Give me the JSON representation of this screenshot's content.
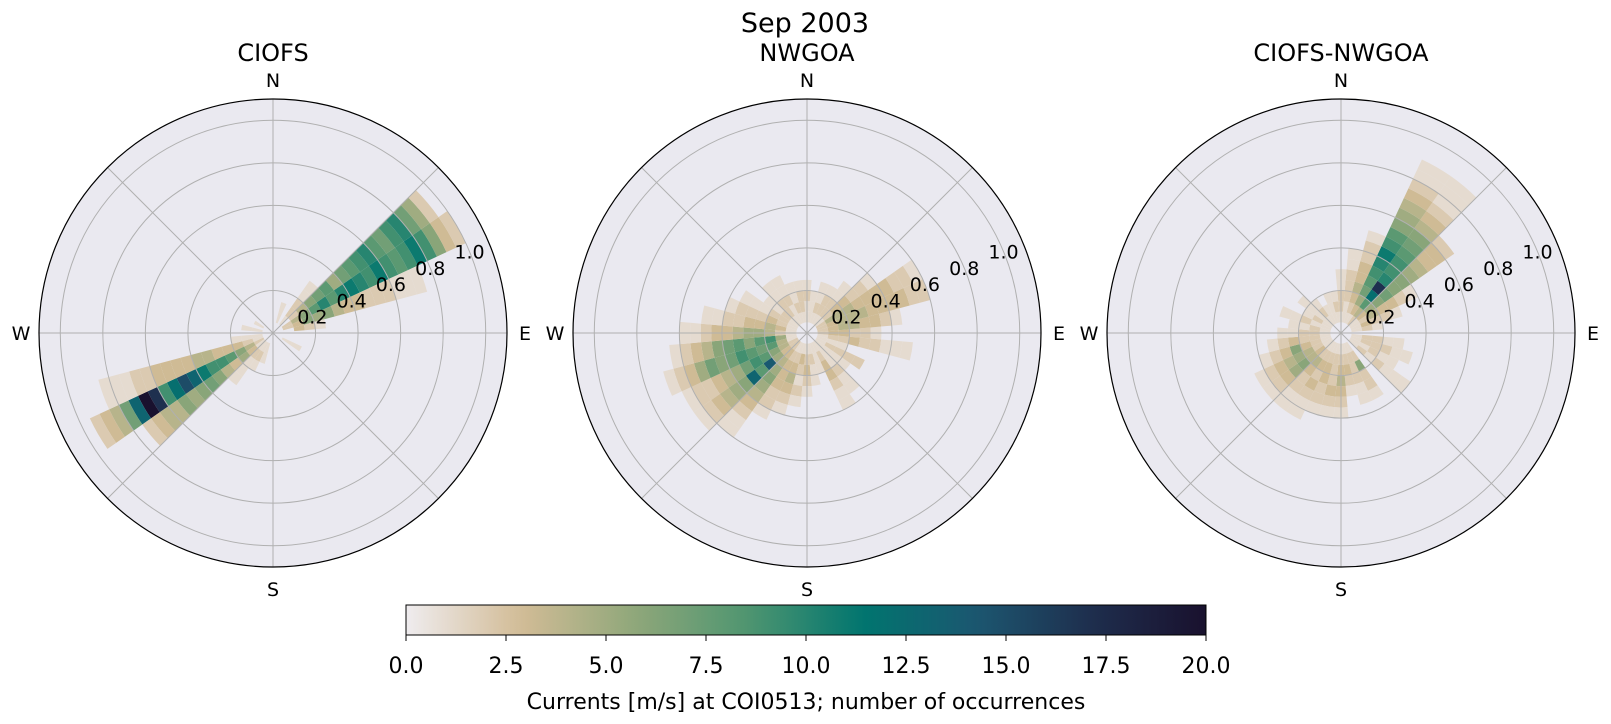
{
  "figure": {
    "suptitle": "Sep 2003"
  },
  "colorbar": {
    "label": "Currents [m/s] at COI0513; number of occurrences",
    "min": 0,
    "max": 20,
    "ticks": [
      "0.0",
      "2.5",
      "5.0",
      "7.5",
      "10.0",
      "12.5",
      "15.0",
      "17.5",
      "20.0"
    ],
    "colormap": [
      "#efecef",
      "#d2bc96",
      "#8fa77a",
      "#4e9570",
      "#00756f",
      "#1c5670",
      "#1e2e4d",
      "#19112e"
    ]
  },
  "chart_data": [
    {
      "type": "heatmap",
      "subtype": "polar-rose-2d-histogram",
      "title": "CIOFS",
      "compass_labels": [
        "N",
        "E",
        "S",
        "W"
      ],
      "radial_ticks": [
        "0.2",
        "0.4",
        "0.6",
        "0.8",
        "1.0"
      ],
      "rmax": 1.1,
      "dir_bin_deg": 10,
      "speed_bin": 0.05,
      "grid": true,
      "bins": [
        {
          "dir": 60,
          "counts": [
            0,
            2,
            4,
            6,
            8,
            10,
            8,
            10,
            11,
            10,
            9,
            11,
            9,
            8,
            9,
            11,
            9,
            6,
            3,
            2
          ]
        },
        {
          "dir": 50,
          "counts": [
            0,
            0,
            2,
            4,
            6,
            7,
            8,
            5,
            7,
            8,
            9,
            10,
            8,
            7,
            9,
            10,
            7,
            5,
            2
          ]
        },
        {
          "dir": 70,
          "counts": [
            0,
            2,
            3,
            6,
            5,
            6,
            4,
            3,
            3,
            2,
            2,
            2,
            1,
            1,
            1
          ]
        },
        {
          "dir": 40,
          "counts": [
            0,
            1,
            2,
            2,
            1,
            1
          ]
        },
        {
          "dir": 80,
          "counts": [
            0,
            0,
            3,
            2,
            1
          ]
        },
        {
          "dir": 240,
          "counts": [
            0,
            2,
            4,
            6,
            8,
            9,
            9,
            11,
            13,
            15,
            12,
            9,
            17,
            20,
            13,
            7,
            4,
            3,
            2
          ]
        },
        {
          "dir": 230,
          "counts": [
            0,
            1,
            3,
            5,
            3,
            4,
            6,
            7,
            6,
            5,
            6,
            4,
            4,
            3,
            2
          ]
        },
        {
          "dir": 250,
          "counts": [
            0,
            1,
            2,
            3,
            3,
            3,
            4,
            4,
            3,
            3,
            3,
            3,
            2,
            2,
            1,
            1,
            1
          ]
        },
        {
          "dir": 220,
          "counts": [
            0,
            1,
            2,
            1,
            1,
            1
          ]
        },
        {
          "dir": 210,
          "counts": [
            0,
            1,
            2,
            1
          ]
        },
        {
          "dir": 200,
          "counts": [
            0,
            1,
            1
          ]
        },
        {
          "dir": 260,
          "counts": [
            0,
            1,
            1,
            1
          ]
        },
        {
          "dir": 20,
          "counts": [
            0,
            1,
            1
          ]
        },
        {
          "dir": 280,
          "counts": [
            0,
            1,
            1
          ]
        },
        {
          "dir": 300,
          "counts": [
            0,
            1
          ]
        },
        {
          "dir": 120,
          "counts": [
            0,
            1,
            1
          ]
        }
      ]
    },
    {
      "type": "heatmap",
      "subtype": "polar-rose-2d-histogram",
      "title": "NWGOA",
      "compass_labels": [
        "N",
        "E",
        "S",
        "W"
      ],
      "radial_ticks": [
        "0.2",
        "0.4",
        "0.6",
        "0.8",
        "1.0"
      ],
      "rmax": 1.1,
      "dir_bin_deg": 10,
      "speed_bin": 0.05,
      "grid": true,
      "bins": [
        {
          "dir": 240,
          "counts": [
            0,
            2,
            4,
            6,
            8,
            9,
            7,
            5,
            4,
            3,
            2,
            2,
            1
          ]
        },
        {
          "dir": 250,
          "counts": [
            0,
            1,
            4,
            8,
            7,
            8,
            9,
            7,
            6,
            7,
            5,
            3,
            2,
            1
          ]
        },
        {
          "dir": 260,
          "counts": [
            0,
            1,
            5,
            9,
            8,
            6,
            8,
            7,
            6,
            4,
            3,
            2,
            1
          ]
        },
        {
          "dir": 230,
          "counts": [
            0,
            2,
            3,
            5,
            14,
            8,
            13,
            6,
            5,
            4,
            3,
            2,
            1
          ]
        },
        {
          "dir": 220,
          "counts": [
            0,
            2,
            3,
            4,
            5,
            6,
            5,
            4,
            3,
            2,
            1,
            1
          ]
        },
        {
          "dir": 270,
          "counts": [
            0,
            1,
            2,
            4,
            5,
            5,
            4,
            3,
            3,
            2,
            1,
            1
          ]
        },
        {
          "dir": 280,
          "counts": [
            0,
            1,
            3,
            4,
            3,
            3,
            2,
            2,
            1,
            1
          ]
        },
        {
          "dir": 290,
          "counts": [
            0,
            1,
            2,
            3,
            2,
            2,
            2,
            1
          ]
        },
        {
          "dir": 300,
          "counts": [
            0,
            1,
            2,
            2,
            1,
            1,
            1
          ]
        },
        {
          "dir": 210,
          "counts": [
            0,
            1,
            2,
            3,
            3,
            3,
            2,
            2,
            1
          ]
        },
        {
          "dir": 200,
          "counts": [
            0,
            1,
            2,
            3,
            4,
            3,
            2,
            1
          ]
        },
        {
          "dir": 190,
          "counts": [
            0,
            1,
            3,
            2,
            1,
            2,
            1
          ]
        },
        {
          "dir": 180,
          "counts": [
            0,
            1,
            2,
            3,
            2,
            1
          ]
        },
        {
          "dir": 170,
          "counts": [
            0,
            1,
            2,
            1,
            1
          ]
        },
        {
          "dir": 150,
          "counts": [
            0,
            1,
            2,
            3,
            3,
            2,
            1,
            1
          ]
        },
        {
          "dir": 140,
          "counts": [
            0,
            1,
            1,
            1,
            2,
            1,
            1
          ]
        },
        {
          "dir": 130,
          "counts": [
            0,
            1,
            1,
            1,
            1
          ]
        },
        {
          "dir": 120,
          "counts": [
            0,
            1,
            2,
            2,
            2,
            2
          ]
        },
        {
          "dir": 100,
          "counts": [
            0,
            1,
            2,
            2,
            3,
            2,
            2,
            1,
            1,
            1
          ]
        },
        {
          "dir": 90,
          "counts": [
            0,
            2,
            3,
            3,
            2,
            2,
            1
          ]
        },
        {
          "dir": 80,
          "counts": [
            0,
            2,
            3,
            4,
            4,
            3,
            3,
            2,
            1
          ]
        },
        {
          "dir": 70,
          "counts": [
            0,
            2,
            3,
            4,
            4,
            4,
            3,
            3,
            3,
            3,
            2,
            2
          ]
        },
        {
          "dir": 60,
          "counts": [
            0,
            2,
            4,
            4,
            4,
            3,
            3,
            3,
            3,
            2,
            2,
            1
          ]
        },
        {
          "dir": 50,
          "counts": [
            0,
            1,
            2,
            3,
            3,
            2,
            2,
            1
          ]
        },
        {
          "dir": 40,
          "counts": [
            0,
            1,
            2,
            2,
            1,
            1
          ]
        },
        {
          "dir": 30,
          "counts": [
            0,
            1,
            2,
            2,
            1
          ]
        },
        {
          "dir": 20,
          "counts": [
            0,
            1,
            2,
            1,
            1
          ]
        },
        {
          "dir": 10,
          "counts": [
            0,
            1,
            1,
            1
          ]
        },
        {
          "dir": 0,
          "counts": [
            0,
            1,
            1,
            2,
            1
          ]
        },
        {
          "dir": 350,
          "counts": [
            0,
            1,
            2,
            2,
            1
          ]
        },
        {
          "dir": 340,
          "counts": [
            0,
            1,
            2,
            1,
            1
          ]
        },
        {
          "dir": 330,
          "counts": [
            0,
            1,
            1,
            2,
            1,
            1
          ]
        },
        {
          "dir": 320,
          "counts": [
            0,
            1,
            2,
            2,
            1,
            1
          ]
        },
        {
          "dir": 310,
          "counts": [
            0,
            1,
            2,
            1,
            1
          ]
        },
        {
          "dir": 160,
          "counts": [
            0,
            1,
            1,
            1
          ]
        },
        {
          "dir": 110,
          "counts": [
            0,
            1,
            1,
            1
          ]
        }
      ]
    },
    {
      "type": "heatmap",
      "subtype": "polar-rose-2d-histogram",
      "title": "CIOFS-NWGOA",
      "compass_labels": [
        "N",
        "E",
        "S",
        "W"
      ],
      "radial_ticks": [
        "0.2",
        "0.4",
        "0.6",
        "0.8",
        "1.0"
      ],
      "rmax": 1.1,
      "dir_bin_deg": 10,
      "speed_bin": 0.05,
      "grid": true,
      "bins": [
        {
          "dir": 40,
          "counts": [
            0,
            2,
            4,
            8,
            12,
            17,
            10,
            9,
            9,
            8,
            7,
            6,
            4,
            3,
            2,
            1,
            1,
            1
          ]
        },
        {
          "dir": 30,
          "counts": [
            0,
            1,
            3,
            5,
            7,
            8,
            9,
            10,
            11,
            9,
            8,
            6,
            5,
            4,
            3,
            2,
            1,
            1
          ]
        },
        {
          "dir": 50,
          "counts": [
            0,
            1,
            3,
            5,
            6,
            7,
            6,
            6,
            5,
            4,
            3,
            3,
            2
          ]
        },
        {
          "dir": 20,
          "counts": [
            0,
            1,
            2,
            3,
            4,
            3,
            3,
            2,
            2,
            1
          ]
        },
        {
          "dir": 60,
          "counts": [
            0,
            1,
            2,
            4,
            3,
            3,
            2,
            1
          ]
        },
        {
          "dir": 10,
          "counts": [
            0,
            1,
            1,
            2,
            2,
            2,
            1,
            1
          ]
        },
        {
          "dir": 0,
          "counts": [
            0,
            1,
            2,
            2,
            1,
            1
          ]
        },
        {
          "dir": 70,
          "counts": [
            0,
            1,
            3,
            2,
            2,
            1
          ]
        },
        {
          "dir": 80,
          "counts": [
            0,
            1,
            2,
            1
          ]
        },
        {
          "dir": 100,
          "counts": [
            0,
            1,
            2,
            2,
            1,
            1
          ]
        },
        {
          "dir": 110,
          "counts": [
            0,
            1,
            2,
            2,
            2,
            1,
            1
          ]
        },
        {
          "dir": 120,
          "counts": [
            0,
            1,
            1,
            2,
            1,
            1
          ]
        },
        {
          "dir": 130,
          "counts": [
            0,
            1,
            2,
            1,
            2,
            1,
            1,
            1
          ]
        },
        {
          "dir": 150,
          "counts": [
            0,
            1,
            2,
            6,
            2,
            2,
            1
          ]
        },
        {
          "dir": 160,
          "counts": [
            0,
            1,
            2,
            2,
            2,
            1,
            1
          ]
        },
        {
          "dir": 170,
          "counts": [
            0,
            1,
            2,
            3,
            2,
            1
          ]
        },
        {
          "dir": 180,
          "counts": [
            0,
            1,
            2,
            3,
            4,
            3,
            2,
            1
          ]
        },
        {
          "dir": 190,
          "counts": [
            0,
            1,
            2,
            2,
            2,
            3,
            2,
            1
          ]
        },
        {
          "dir": 200,
          "counts": [
            0,
            1,
            2,
            3,
            3,
            2,
            2,
            1
          ]
        },
        {
          "dir": 210,
          "counts": [
            0,
            1,
            2,
            3,
            2,
            3,
            2,
            1,
            1
          ]
        },
        {
          "dir": 220,
          "counts": [
            0,
            1,
            2,
            4,
            3,
            2,
            2,
            1,
            1
          ]
        },
        {
          "dir": 230,
          "counts": [
            0,
            1,
            3,
            4,
            6,
            5,
            3,
            2,
            1
          ]
        },
        {
          "dir": 240,
          "counts": [
            0,
            1,
            2,
            4,
            5,
            4,
            3,
            2,
            1
          ]
        },
        {
          "dir": 250,
          "counts": [
            0,
            1,
            2,
            3,
            6,
            3,
            2,
            1
          ]
        },
        {
          "dir": 260,
          "counts": [
            0,
            1,
            2,
            2,
            3,
            2,
            1
          ]
        },
        {
          "dir": 270,
          "counts": [
            0,
            1,
            2,
            2,
            1,
            1
          ]
        },
        {
          "dir": 280,
          "counts": [
            0,
            1,
            2,
            1,
            1
          ]
        },
        {
          "dir": 290,
          "counts": [
            0,
            1,
            1,
            2,
            1,
            1
          ]
        },
        {
          "dir": 300,
          "counts": [
            0,
            1,
            2,
            1
          ]
        },
        {
          "dir": 310,
          "counts": [
            0,
            1,
            1,
            1,
            1
          ]
        },
        {
          "dir": 320,
          "counts": [
            0,
            1,
            2,
            1
          ]
        },
        {
          "dir": 330,
          "counts": [
            0,
            1,
            1
          ]
        },
        {
          "dir": 340,
          "counts": [
            0,
            1,
            1,
            1
          ]
        },
        {
          "dir": 350,
          "counts": [
            0,
            1,
            2,
            1
          ]
        }
      ]
    }
  ]
}
